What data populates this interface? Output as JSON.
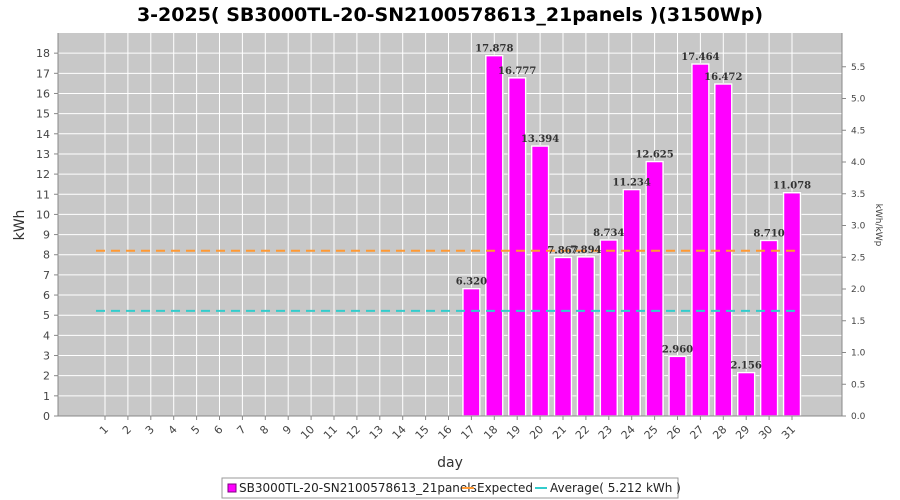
{
  "chart_data": {
    "type": "bar",
    "title": "3-2025( SB3000TL-20-SN2100578613_21panels )(3150Wp)",
    "xlabel": "day",
    "ylabel": "kWh",
    "y2label": "kWh/kWp",
    "ylim": [
      0,
      19
    ],
    "y2lim": [
      0,
      6.0317
    ],
    "yticks": [
      0,
      1,
      2,
      3,
      4,
      5,
      6,
      7,
      8,
      9,
      10,
      11,
      12,
      13,
      14,
      15,
      16,
      17,
      18
    ],
    "y2ticks": [
      "0.0",
      "0.5",
      "1.0",
      "1.5",
      "2.0",
      "2.5",
      "3.0",
      "3.5",
      "4.0",
      "4.5",
      "5.0",
      "5.5"
    ],
    "grid": true,
    "legend_position": "bottom",
    "categories": [
      "1",
      "2",
      "3",
      "4",
      "5",
      "6",
      "7",
      "8",
      "9",
      "10",
      "11",
      "12",
      "13",
      "14",
      "15",
      "16",
      "17",
      "18",
      "19",
      "20",
      "21",
      "22",
      "23",
      "24",
      "25",
      "26",
      "27",
      "28",
      "29",
      "30",
      "31"
    ],
    "series": [
      {
        "name": "SB3000TL-20-SN2100578613_21panels",
        "color": "#ff00ff",
        "values": [
          0,
          0,
          0,
          0,
          0,
          0,
          0,
          0,
          0,
          0,
          0,
          0,
          0,
          0,
          0,
          0,
          6.32,
          17.878,
          16.777,
          13.394,
          7.867,
          7.894,
          8.734,
          11.234,
          12.625,
          2.96,
          17.464,
          16.472,
          2.156,
          8.71,
          11.078
        ],
        "labels": [
          "",
          "",
          "",
          "",
          "",
          "",
          "",
          "",
          "",
          "",
          "",
          "",
          "",
          "",
          "",
          "",
          "6.320",
          "17.878",
          "16.777",
          "13.394",
          "7.867",
          "7.894",
          "8.734",
          "11.234",
          "12.625",
          "2.960",
          "17.464",
          "16.472",
          "2.156",
          "8.710",
          "11.078"
        ]
      }
    ],
    "lines": [
      {
        "name": "Expected",
        "value": 8.2,
        "color": "#ff9933"
      },
      {
        "name": "Average( 5.212 kWh )",
        "value": 5.212,
        "color": "#33cccc"
      }
    ]
  }
}
